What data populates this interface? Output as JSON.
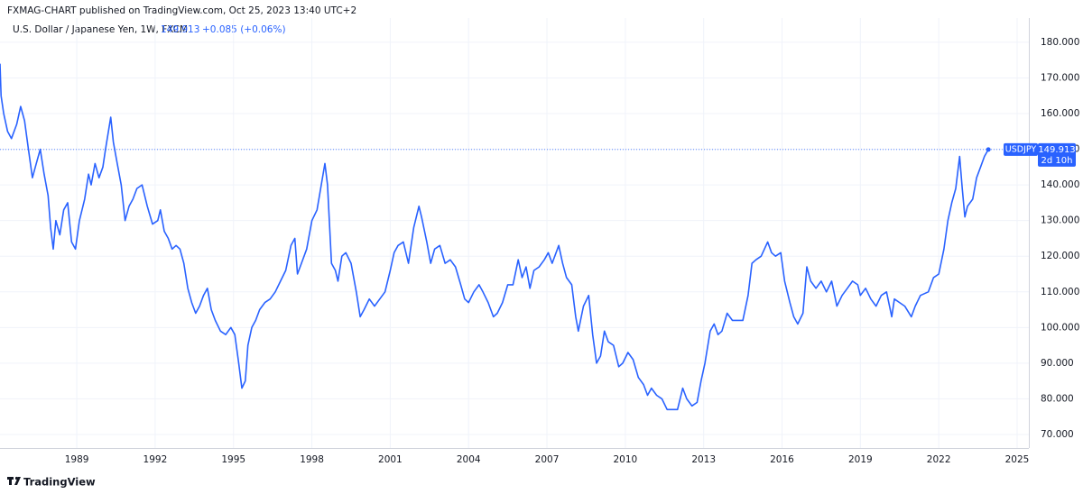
{
  "header": {
    "published": "FXMAG-CHART published on TradingView.com, Oct 25, 2023 13:40 UTC+2",
    "brand": "TradingView"
  },
  "chart_data": {
    "type": "line",
    "title": "U.S. Dollar / Japanese Yen, 1W, FXCM",
    "change": "+0.085 (+0.06%)",
    "symbol": "USDJPY",
    "countdown": "2d 10h",
    "last_price": 149.913,
    "color": "#2962ff",
    "grid": true,
    "xlim": [
      1986.06,
      2025.45
    ],
    "ylim": [
      66.2,
      186.8
    ],
    "xticks": [
      1989,
      1992,
      1995,
      1998,
      2001,
      2004,
      2007,
      2010,
      2013,
      2016,
      2019,
      2022,
      2025
    ],
    "yticks": [
      {
        "value": 70,
        "label": "70.000"
      },
      {
        "value": 80,
        "label": "80.000"
      },
      {
        "value": 90,
        "label": "90.000"
      },
      {
        "value": 100,
        "label": "100.000"
      },
      {
        "value": 110,
        "label": "110.000"
      },
      {
        "value": 120,
        "label": "120.000"
      },
      {
        "value": 130,
        "label": "130.000"
      },
      {
        "value": 140,
        "label": "140.000"
      },
      {
        "value": 150,
        "label": "150.000"
      },
      {
        "value": 160,
        "label": "160.000"
      },
      {
        "value": 170,
        "label": "170.000"
      },
      {
        "value": 180,
        "label": "180.000"
      }
    ],
    "x": [
      1986.06,
      1986.1,
      1986.2,
      1986.35,
      1986.5,
      1986.7,
      1986.85,
      1987.0,
      1987.15,
      1987.3,
      1987.45,
      1987.6,
      1987.75,
      1987.9,
      1988.0,
      1988.1,
      1988.2,
      1988.35,
      1988.5,
      1988.65,
      1988.8,
      1988.95,
      1989.1,
      1989.3,
      1989.45,
      1989.55,
      1989.7,
      1989.85,
      1990.0,
      1990.1,
      1990.3,
      1990.4,
      1990.55,
      1990.7,
      1990.85,
      1991.0,
      1991.15,
      1991.3,
      1991.5,
      1991.7,
      1991.9,
      1992.1,
      1992.2,
      1992.35,
      1992.5,
      1992.65,
      1992.8,
      1992.95,
      1993.1,
      1993.25,
      1993.4,
      1993.55,
      1993.7,
      1993.85,
      1994.0,
      1994.15,
      1994.3,
      1994.5,
      1994.7,
      1994.9,
      1995.05,
      1995.2,
      1995.32,
      1995.45,
      1995.55,
      1995.7,
      1995.85,
      1996.0,
      1996.2,
      1996.4,
      1996.6,
      1996.8,
      1997.0,
      1997.2,
      1997.35,
      1997.45,
      1997.6,
      1997.8,
      1998.0,
      1998.2,
      1998.5,
      1998.6,
      1998.75,
      1998.9,
      1999.0,
      1999.15,
      1999.3,
      1999.5,
      1999.7,
      1999.85,
      2000.0,
      2000.2,
      2000.4,
      2000.6,
      2000.8,
      2001.0,
      2001.15,
      2001.3,
      2001.5,
      2001.7,
      2001.9,
      2002.1,
      2002.2,
      2002.4,
      2002.55,
      2002.7,
      2002.9,
      2003.1,
      2003.3,
      2003.5,
      2003.7,
      2003.85,
      2004.0,
      2004.2,
      2004.4,
      2004.55,
      2004.75,
      2004.95,
      2005.1,
      2005.3,
      2005.5,
      2005.7,
      2005.9,
      2006.05,
      2006.2,
      2006.35,
      2006.5,
      2006.7,
      2006.9,
      2007.05,
      2007.2,
      2007.45,
      2007.6,
      2007.75,
      2007.95,
      2008.1,
      2008.2,
      2008.4,
      2008.6,
      2008.75,
      2008.9,
      2009.05,
      2009.2,
      2009.35,
      2009.55,
      2009.75,
      2009.9,
      2010.1,
      2010.3,
      2010.5,
      2010.7,
      2010.85,
      2011.0,
      2011.2,
      2011.4,
      2011.6,
      2011.8,
      2012.0,
      2012.2,
      2012.35,
      2012.55,
      2012.75,
      2012.9,
      2013.05,
      2013.25,
      2013.4,
      2013.55,
      2013.7,
      2013.9,
      2014.1,
      2014.3,
      2014.5,
      2014.7,
      2014.85,
      2015.0,
      2015.2,
      2015.45,
      2015.6,
      2015.75,
      2015.95,
      2016.1,
      2016.3,
      2016.45,
      2016.6,
      2016.8,
      2016.95,
      2017.1,
      2017.3,
      2017.5,
      2017.7,
      2017.9,
      2018.1,
      2018.3,
      2018.5,
      2018.7,
      2018.9,
      2019.0,
      2019.2,
      2019.4,
      2019.6,
      2019.8,
      2020.0,
      2020.2,
      2020.3,
      2020.5,
      2020.7,
      2020.95,
      2021.1,
      2021.3,
      2021.6,
      2021.8,
      2022.0,
      2022.2,
      2022.35,
      2022.5,
      2022.65,
      2022.8,
      2022.9,
      2023.0,
      2023.1,
      2023.3,
      2023.45,
      2023.6,
      2023.75,
      2023.9
    ],
    "values": [
      174,
      165,
      160,
      155,
      153,
      157,
      162,
      158,
      150,
      142,
      146,
      150,
      143,
      137,
      128,
      122,
      130,
      126,
      133,
      135,
      124,
      122,
      130,
      136,
      143,
      140,
      146,
      142,
      145,
      150,
      159,
      152,
      146,
      140,
      130,
      134,
      136,
      139,
      140,
      134,
      129,
      130,
      133,
      127,
      125,
      122,
      123,
      122,
      118,
      111,
      107,
      104,
      106,
      109,
      111,
      105,
      102,
      99,
      98,
      100,
      98,
      90,
      83,
      85,
      95,
      100,
      102,
      105,
      107,
      108,
      110,
      113,
      116,
      123,
      125,
      115,
      118,
      122,
      130,
      133,
      146,
      140,
      118,
      116,
      113,
      120,
      121,
      118,
      110,
      103,
      105,
      108,
      106,
      108,
      110,
      116,
      121,
      123,
      124,
      118,
      128,
      134,
      131,
      124,
      118,
      122,
      123,
      118,
      119,
      117,
      112,
      108,
      107,
      110,
      112,
      110,
      107,
      103,
      104,
      107,
      112,
      112,
      119,
      114,
      117,
      111,
      116,
      117,
      119,
      121,
      118,
      123,
      118,
      114,
      112,
      103,
      99,
      106,
      109,
      98,
      90,
      92,
      99,
      96,
      95,
      89,
      90,
      93,
      91,
      86,
      84,
      81,
      83,
      81,
      80,
      77,
      77,
      77,
      83,
      80,
      78,
      79,
      85,
      90,
      99,
      101,
      98,
      99,
      104,
      102,
      102,
      102,
      109,
      118,
      119,
      120,
      124,
      121,
      120,
      121,
      113,
      107,
      103,
      101,
      104,
      117,
      113,
      111,
      113,
      110,
      113,
      106,
      109,
      111,
      113,
      112,
      109,
      111,
      108,
      106,
      109,
      110,
      103,
      108,
      107,
      106,
      103,
      106,
      109,
      110,
      114,
      115,
      122,
      130,
      135,
      139,
      148,
      139,
      131,
      134,
      136,
      142,
      145,
      148,
      149.913
    ]
  }
}
